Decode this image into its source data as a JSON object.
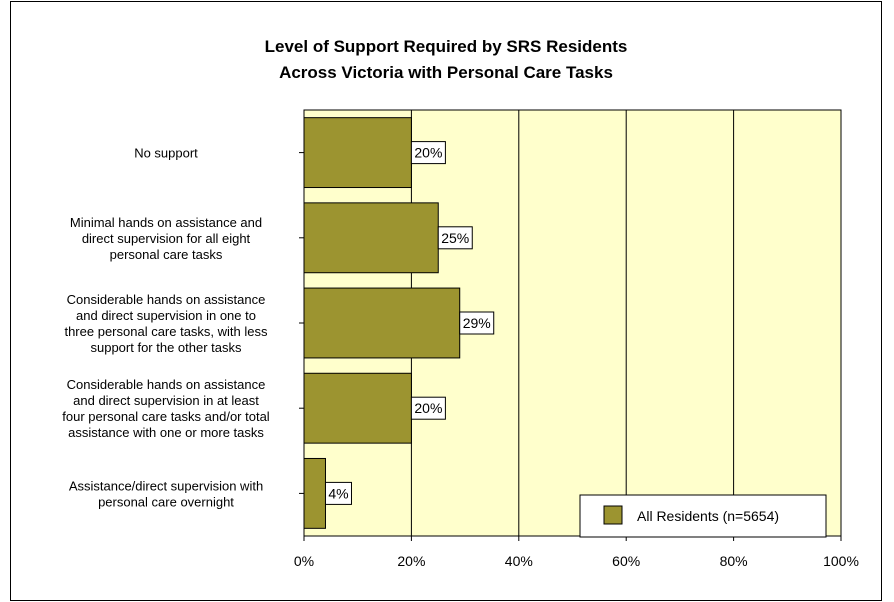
{
  "chart_data": {
    "type": "bar",
    "orientation": "horizontal",
    "title_lines": [
      "Level of Support Required by SRS Residents",
      "Across Victoria with Personal Care Tasks"
    ],
    "categories": [
      [
        "No support"
      ],
      [
        "Minimal hands on assistance and",
        "direct supervision for all eight",
        "personal care tasks"
      ],
      [
        "Considerable hands on assistance",
        "and direct supervision in one to",
        "three personal care tasks, with less",
        "support for the other tasks"
      ],
      [
        "Considerable hands on assistance",
        "and direct supervision in at least",
        "four personal care tasks and/or total",
        "assistance with one or more tasks"
      ],
      [
        "Assistance/direct supervision with",
        "personal care overnight"
      ]
    ],
    "series": [
      {
        "name": "All Residents (n=5654)",
        "values": [
          20,
          25,
          29,
          20,
          4
        ],
        "data_labels": [
          "20%",
          "25%",
          "29%",
          "20%",
          "4%"
        ]
      }
    ],
    "xlim": [
      0,
      100
    ],
    "x_ticks": [
      "0%",
      "20%",
      "40%",
      "60%",
      "80%",
      "100%"
    ],
    "gridlines": "vertical",
    "legend_position": "bottom-right",
    "colors": {
      "bar": "#9c9430",
      "plot_background": "#ffffcc",
      "label_background": "#ffffff"
    }
  }
}
